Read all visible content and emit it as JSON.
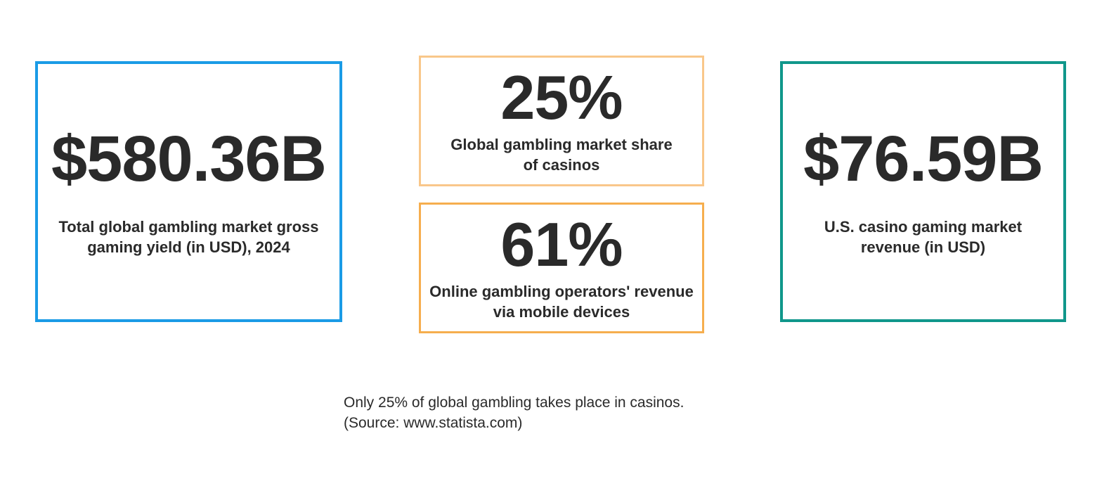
{
  "colors": {
    "total_border": "#1a9be6",
    "share_border": "#f9c78a",
    "mobile_border": "#f6ae4e",
    "us_border": "#10978b",
    "text": "#2a2a2a"
  },
  "stats": {
    "total": {
      "value": "$580.36B",
      "label": "Total global gambling market gross gaming yield (in USD), 2024"
    },
    "share": {
      "value": "25%",
      "label": "Global gambling market share of casinos"
    },
    "mobile": {
      "value": "61%",
      "label": "Online gambling operators' revenue via mobile devices"
    },
    "us": {
      "value": "$76.59B",
      "label": "U.S. casino gaming market revenue (in USD)"
    }
  },
  "caption": {
    "line1": "Only 25% of global gambling takes place in casinos.",
    "line2": "(Source: www.statista.com)"
  }
}
